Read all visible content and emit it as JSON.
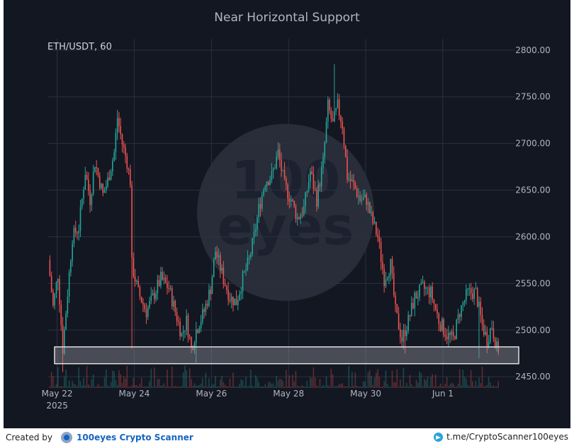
{
  "chart_data": {
    "type": "candlestick",
    "title": "Near Horizontal Support",
    "symbol_label": "ETH/USDT, 60",
    "y_ticks": [
      "2450.00",
      "2500.00",
      "2550.00",
      "2600.00",
      "2650.00",
      "2700.00",
      "2750.00",
      "2800.00"
    ],
    "ylim": [
      2438,
      2812
    ],
    "x_ticks": [
      {
        "label": "May 22",
        "sublabel": "2025",
        "hour": 0
      },
      {
        "label": "May 24",
        "sublabel": "",
        "hour": 48
      },
      {
        "label": "May 26",
        "sublabel": "",
        "hour": 96
      },
      {
        "label": "May 28",
        "sublabel": "",
        "hour": 144
      },
      {
        "label": "May 30",
        "sublabel": "",
        "hour": 192
      },
      {
        "label": "Jun 1",
        "sublabel": "",
        "hour": 240
      }
    ],
    "xlim_hours": [
      -6,
      285
    ],
    "price_path": [
      [
        -5,
        2575
      ],
      [
        -2,
        2525
      ],
      [
        1,
        2560
      ],
      [
        4,
        2480
      ],
      [
        7,
        2540
      ],
      [
        10,
        2600
      ],
      [
        14,
        2610
      ],
      [
        18,
        2670
      ],
      [
        21,
        2640
      ],
      [
        24,
        2680
      ],
      [
        29,
        2645
      ],
      [
        32,
        2660
      ],
      [
        36,
        2690
      ],
      [
        38,
        2728
      ],
      [
        41,
        2700
      ],
      [
        44,
        2680
      ],
      [
        46,
        2660
      ],
      [
        47,
        2570
      ],
      [
        51,
        2540
      ],
      [
        56,
        2520
      ],
      [
        60,
        2535
      ],
      [
        65,
        2555
      ],
      [
        70,
        2545
      ],
      [
        74,
        2520
      ],
      [
        78,
        2495
      ],
      [
        81,
        2510
      ],
      [
        84,
        2480
      ],
      [
        87,
        2500
      ],
      [
        92,
        2520
      ],
      [
        96,
        2545
      ],
      [
        99,
        2585
      ],
      [
        104,
        2555
      ],
      [
        108,
        2535
      ],
      [
        112,
        2530
      ],
      [
        116,
        2555
      ],
      [
        120,
        2575
      ],
      [
        123,
        2600
      ],
      [
        126,
        2630
      ],
      [
        130,
        2660
      ],
      [
        134,
        2665
      ],
      [
        138,
        2690
      ],
      [
        142,
        2655
      ],
      [
        146,
        2640
      ],
      [
        150,
        2620
      ],
      [
        154,
        2630
      ],
      [
        158,
        2670
      ],
      [
        162,
        2640
      ],
      [
        166,
        2680
      ],
      [
        169,
        2740
      ],
      [
        172,
        2720
      ],
      [
        175,
        2740
      ],
      [
        178,
        2720
      ],
      [
        181,
        2665
      ],
      [
        185,
        2655
      ],
      [
        189,
        2640
      ],
      [
        193,
        2640
      ],
      [
        196,
        2620
      ],
      [
        200,
        2600
      ],
      [
        204,
        2555
      ],
      [
        208,
        2570
      ],
      [
        211,
        2520
      ],
      [
        215,
        2490
      ],
      [
        219,
        2510
      ],
      [
        223,
        2535
      ],
      [
        228,
        2545
      ],
      [
        233,
        2540
      ],
      [
        238,
        2510
      ],
      [
        243,
        2495
      ],
      [
        247,
        2490
      ],
      [
        251,
        2520
      ],
      [
        256,
        2540
      ],
      [
        261,
        2540
      ],
      [
        265,
        2505
      ],
      [
        268,
        2490
      ],
      [
        271,
        2505
      ],
      [
        274,
        2480
      ]
    ],
    "support_zone": {
      "low": 2464,
      "high": 2482
    },
    "watermark": "100 eyes"
  },
  "footer": {
    "created_by": "Created by",
    "brand": "100eyes Crypto Scanner",
    "telegram": "t.me/CryptoScanner100eyes"
  },
  "colors": {
    "background": "#131722",
    "up": "#26a69a",
    "down": "#ef5350",
    "grid": "#2b3040",
    "text": "#b2b5be",
    "support_fill": "#8c8f99",
    "support_stroke": "#e0e0e0"
  }
}
